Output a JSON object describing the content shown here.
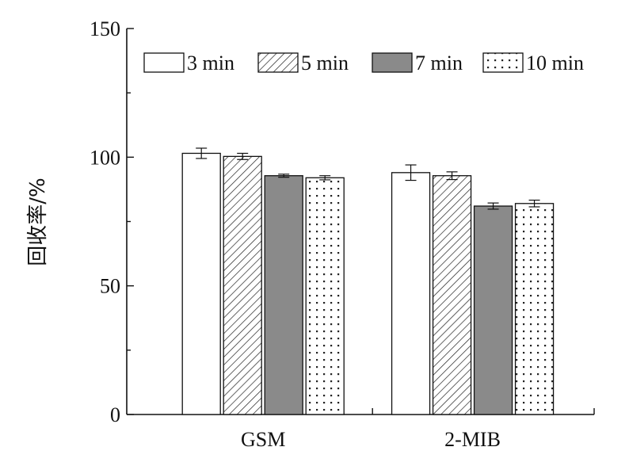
{
  "chart_data": {
    "type": "bar",
    "title": "",
    "xlabel": "",
    "ylabel": "回收率/%",
    "ylim": [
      0,
      150
    ],
    "yticks": [
      0,
      50,
      100,
      150
    ],
    "categories": [
      "GSM",
      "2-MIB"
    ],
    "legend_position": "top",
    "grid": false,
    "series": [
      {
        "name": "3 min",
        "values": [
          101.5,
          94.0
        ],
        "errors": [
          2.0,
          3.0
        ],
        "pattern": "none",
        "color": "#ffffff"
      },
      {
        "name": "5 min",
        "values": [
          100.3,
          92.8
        ],
        "errors": [
          1.2,
          1.5
        ],
        "pattern": "hatch",
        "color": "#ffffff"
      },
      {
        "name": "7 min",
        "values": [
          92.8,
          81.0
        ],
        "errors": [
          0.6,
          1.2
        ],
        "pattern": "solid",
        "color": "#8a8a8a"
      },
      {
        "name": "10 min",
        "values": [
          92.0,
          82.0
        ],
        "errors": [
          0.8,
          1.3
        ],
        "pattern": "dots",
        "color": "#ffffff"
      }
    ]
  }
}
